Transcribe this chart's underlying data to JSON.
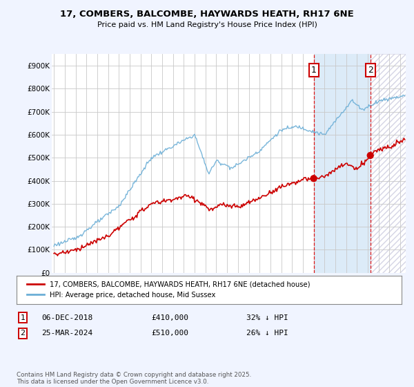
{
  "title_line1": "17, COMBERS, BALCOMBE, HAYWARDS HEATH, RH17 6NE",
  "title_line2": "Price paid vs. HM Land Registry's House Price Index (HPI)",
  "legend_line1": "17, COMBERS, BALCOMBE, HAYWARDS HEATH, RH17 6NE (detached house)",
  "legend_line2": "HPI: Average price, detached house, Mid Sussex",
  "annotation1_label": "1",
  "annotation1_date": "06-DEC-2018",
  "annotation1_price": "£410,000",
  "annotation1_hpi": "32% ↓ HPI",
  "annotation2_label": "2",
  "annotation2_date": "25-MAR-2024",
  "annotation2_price": "£510,000",
  "annotation2_hpi": "26% ↓ HPI",
  "footer": "Contains HM Land Registry data © Crown copyright and database right 2025.\nThis data is licensed under the Open Government Licence v3.0.",
  "hpi_color": "#6baed6",
  "price_color": "#cc0000",
  "background_color": "#f0f4ff",
  "plot_bg_color": "#ffffff",
  "grid_color": "#c8c8c8",
  "ylim": [
    0,
    950000
  ],
  "yticks": [
    0,
    100000,
    200000,
    300000,
    400000,
    500000,
    600000,
    700000,
    800000,
    900000
  ],
  "ytick_labels": [
    "£0",
    "£100K",
    "£200K",
    "£300K",
    "£400K",
    "£500K",
    "£600K",
    "£700K",
    "£800K",
    "£900K"
  ],
  "vline1_x": 2019.0,
  "vline2_x": 2024.23,
  "sale1_x": 2019.0,
  "sale1_y": 410000,
  "sale2_x": 2024.23,
  "sale2_y": 510000,
  "shaded_start": 2019.0,
  "shaded_end": 2024.23,
  "hatch_start": 2024.23,
  "hatch_end": 2027.5,
  "xlim_left": 1994.8,
  "xlim_right": 2027.5
}
